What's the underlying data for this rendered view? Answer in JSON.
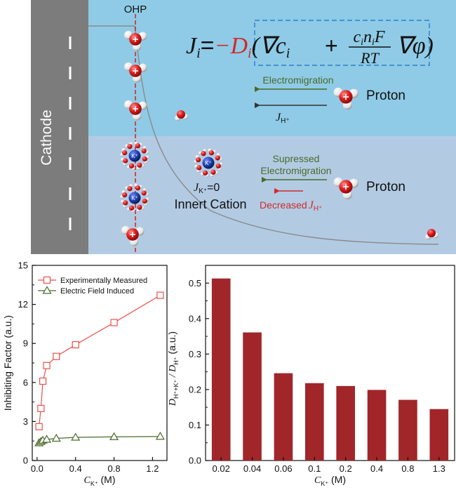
{
  "schematic": {
    "ohp_label": "OHP",
    "cathode_label": "Cathode",
    "equation": {
      "lhs": "J",
      "lhs_sub": "i",
      "equals": "=",
      "minus_d": "−D",
      "d_sub": "i",
      "grad_c": "(∇c",
      "c_sub": "i",
      "plus": "+",
      "num_c": "c",
      "num_c_sub": "i",
      "num_n": "n",
      "num_n_sub": "i",
      "num_f": "F",
      "den": "RT",
      "grad_phi": "∇φ)"
    },
    "upper": {
      "arrow_label": "Electromigration",
      "flux_label": "J",
      "flux_sub": "H⁺",
      "species_label": "Proton"
    },
    "lower": {
      "arrow_label_line1": "Supressed",
      "arrow_label_line2": "Electromigration",
      "decreased_label": "Decreased",
      "flux_label": "J",
      "flux_sub": "H⁺",
      "species_label": "Proton",
      "kplus_flux_label": "J",
      "kplus_flux_sub": "K⁺",
      "kplus_flux_value": "=0",
      "inert_label": "Innert Cation",
      "ion_label": "K⁺"
    },
    "colors": {
      "upper_bg": "#8fcbe6",
      "lower_bg": "#b2cbe3",
      "cathode": "#7c7c7c",
      "accent_red": "#d12a2a",
      "green": "#4a6a2a",
      "potassium": "#1f3fa8"
    }
  },
  "chart_data": [
    {
      "type": "line",
      "title": "",
      "xlabel": "C",
      "xlabel_sub": "K⁺",
      "xlabel_unit": " (M)",
      "ylabel": "Inhibiting Factor (a.u.)",
      "xlim": [
        -0.05,
        1.35
      ],
      "ylim": [
        0,
        15
      ],
      "xticks": [
        0,
        0.4,
        0.8,
        1.2
      ],
      "xtick_labels": [
        "0.0",
        "0.4",
        "0.8",
        "1.2"
      ],
      "yticks": [
        0,
        3,
        6,
        9,
        12,
        15
      ],
      "yminor": [
        1.5,
        4.5,
        7.5,
        10.5,
        13.5
      ],
      "legend_position": "top-left",
      "series": [
        {
          "name": "Experimentally Measured",
          "marker": "square",
          "color": "#e8504a",
          "x": [
            0.02,
            0.04,
            0.06,
            0.1,
            0.2,
            0.4,
            0.8,
            1.28
          ],
          "y": [
            2.6,
            4.0,
            6.1,
            7.3,
            8.0,
            8.9,
            10.6,
            12.7
          ]
        },
        {
          "name": "Electric Field Induced",
          "marker": "triangle",
          "color": "#4a6a2a",
          "x": [
            0.02,
            0.04,
            0.06,
            0.1,
            0.2,
            0.4,
            0.8,
            1.28
          ],
          "y": [
            1.35,
            1.45,
            1.55,
            1.62,
            1.7,
            1.78,
            1.82,
            1.85
          ]
        }
      ]
    },
    {
      "type": "bar",
      "title": "",
      "xlabel": "C",
      "xlabel_sub": "K⁺",
      "xlabel_unit": " (M)",
      "ylabel_main": "D",
      "ylabel_sub1": "H⁺+K⁺",
      "ylabel_slash": " / D",
      "ylabel_sub2": "H⁺",
      "ylabel_unit": " (a.u.)",
      "categories": [
        "0.02",
        "0.04",
        "0.06",
        "0.1",
        "0.2",
        "0.4",
        "0.8",
        "1.3"
      ],
      "values": [
        0.513,
        0.361,
        0.246,
        0.218,
        0.21,
        0.199,
        0.171,
        0.145
      ],
      "ylim": [
        0,
        0.55
      ],
      "yticks": [
        0.0,
        0.1,
        0.2,
        0.3,
        0.4,
        0.5
      ],
      "ytick_labels": [
        "0.0",
        "0.1",
        "0.2",
        "0.3",
        "0.4",
        "0.5"
      ],
      "yminor": [
        0.05,
        0.15,
        0.25,
        0.35,
        0.45
      ],
      "bar_color": "#a0262a"
    }
  ]
}
